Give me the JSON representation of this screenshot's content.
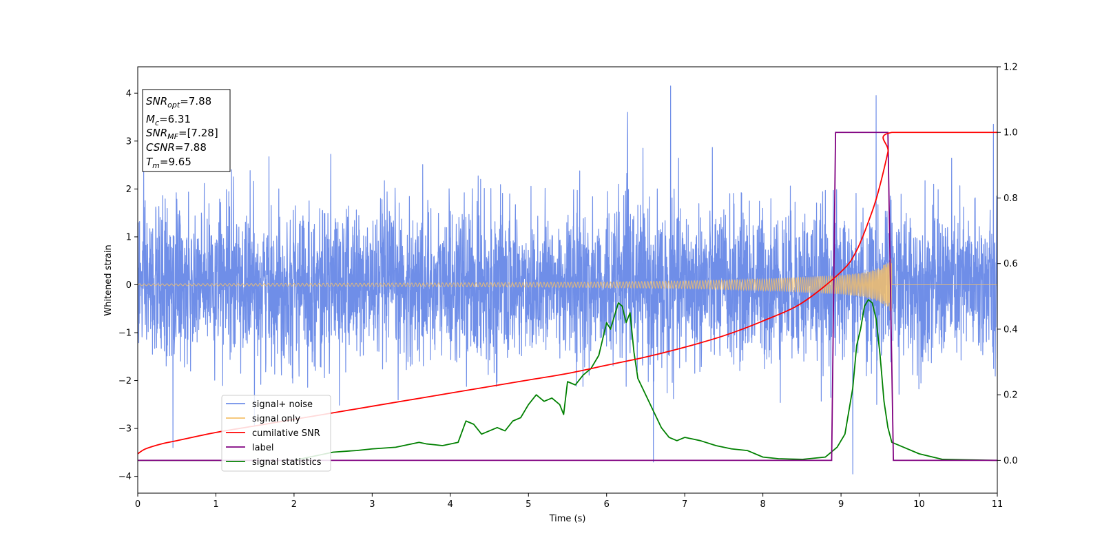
{
  "chart_data": {
    "type": "line",
    "xlabel": "Time (s)",
    "ylabel": "Whitened strain",
    "xlim": [
      0,
      11
    ],
    "ylim_left": [
      -4.35,
      4.55
    ],
    "ylim_right": [
      -0.1,
      1.2
    ],
    "xticks": [
      "0",
      "1",
      "2",
      "3",
      "4",
      "5",
      "6",
      "7",
      "8",
      "9",
      "10",
      "11"
    ],
    "yticks_left": [
      "4",
      "3",
      "2",
      "1",
      "0",
      "−1",
      "−2",
      "−3",
      "−4"
    ],
    "yticks_right": [
      "1.2",
      "1.0",
      "0.8",
      "0.6",
      "0.4",
      "0.2",
      "0.0"
    ],
    "legend_position": "lower-left",
    "legend": [
      "signal+ noise",
      "signal only",
      "cumilative SNR",
      "label",
      "signal statistics"
    ],
    "colors": {
      "noise": "#6f8ee8",
      "signal": "#f5c06a",
      "cum_snr": "#ff0000",
      "label": "#800080",
      "stat": "#008000"
    },
    "info_box": {
      "snr_opt": "=7.88",
      "mc": "=6.31",
      "snr_mf": "=[7.28]",
      "csnr": "=7.88",
      "tm": "=9.65"
    },
    "series": {
      "label": {
        "axis": "right",
        "x": [
          0,
          8.88,
          8.93,
          9.6,
          9.67,
          11
        ],
        "y": [
          0,
          0,
          1,
          1,
          0,
          0
        ]
      },
      "cumulative_snr": {
        "axis": "right",
        "x": [
          0,
          0.1,
          0.3,
          0.5,
          1,
          1.5,
          2,
          2.5,
          3,
          3.5,
          4,
          4.5,
          5,
          5.5,
          6,
          6.5,
          7,
          7.5,
          8,
          8.5,
          9,
          9.2,
          9.4,
          9.5,
          9.6,
          9.65,
          11
        ],
        "y": [
          0.02,
          0.035,
          0.05,
          0.06,
          0.085,
          0.105,
          0.125,
          0.145,
          0.165,
          0.185,
          0.205,
          0.225,
          0.245,
          0.265,
          0.29,
          0.315,
          0.345,
          0.38,
          0.425,
          0.48,
          0.575,
          0.64,
          0.76,
          0.84,
          0.94,
          1.0,
          1.0
        ]
      },
      "signal_statistics": {
        "axis": "right",
        "x": [
          0,
          1,
          2,
          2.5,
          2.8,
          3.0,
          3.3,
          3.6,
          3.7,
          3.9,
          4.1,
          4.2,
          4.3,
          4.4,
          4.5,
          4.6,
          4.7,
          4.8,
          4.9,
          5.0,
          5.1,
          5.2,
          5.3,
          5.4,
          5.45,
          5.5,
          5.6,
          5.7,
          5.8,
          5.9,
          6.0,
          6.05,
          6.1,
          6.15,
          6.2,
          6.25,
          6.3,
          6.35,
          6.4,
          6.5,
          6.6,
          6.7,
          6.8,
          6.9,
          7.0,
          7.1,
          7.2,
          7.4,
          7.6,
          7.8,
          8.0,
          8.2,
          8.5,
          8.8,
          8.95,
          9.05,
          9.1,
          9.15,
          9.2,
          9.25,
          9.3,
          9.35,
          9.4,
          9.45,
          9.5,
          9.55,
          9.6,
          9.65,
          9.7,
          9.8,
          10.0,
          10.3,
          11
        ],
        "y": [
          0.0,
          0.0,
          0.0,
          0.025,
          0.03,
          0.035,
          0.04,
          0.055,
          0.05,
          0.045,
          0.055,
          0.12,
          0.11,
          0.08,
          0.09,
          0.1,
          0.09,
          0.12,
          0.13,
          0.17,
          0.2,
          0.18,
          0.19,
          0.17,
          0.14,
          0.24,
          0.23,
          0.26,
          0.28,
          0.32,
          0.42,
          0.4,
          0.44,
          0.48,
          0.47,
          0.42,
          0.45,
          0.33,
          0.25,
          0.2,
          0.15,
          0.1,
          0.07,
          0.06,
          0.07,
          0.065,
          0.06,
          0.045,
          0.035,
          0.03,
          0.01,
          0.005,
          0.003,
          0.01,
          0.04,
          0.08,
          0.15,
          0.22,
          0.35,
          0.4,
          0.47,
          0.49,
          0.48,
          0.43,
          0.32,
          0.18,
          0.1,
          0.055,
          0.05,
          0.04,
          0.02,
          0.003,
          0.0
        ]
      },
      "signal_only": {
        "axis": "left",
        "description_of_envelope": "chirp",
        "envelope_x": [
          0,
          2,
          4,
          6,
          7,
          8,
          8.5,
          9,
          9.3,
          9.5,
          9.6,
          9.65
        ],
        "envelope_y": [
          0.02,
          0.03,
          0.04,
          0.06,
          0.08,
          0.12,
          0.16,
          0.2,
          0.26,
          0.36,
          0.5,
          0.6
        ]
      },
      "signal_plus_noise": {
        "axis": "left",
        "sigma": 0.8,
        "extreme_spikes_x": [
          0.45,
          1.2,
          6.27,
          6.82,
          9.15,
          9.45,
          10.95,
          6.6
        ],
        "extreme_spikes_y": [
          -3.4,
          2.4,
          3.6,
          4.15,
          -3.95,
          3.95,
          3.35,
          -3.7
        ]
      }
    }
  }
}
